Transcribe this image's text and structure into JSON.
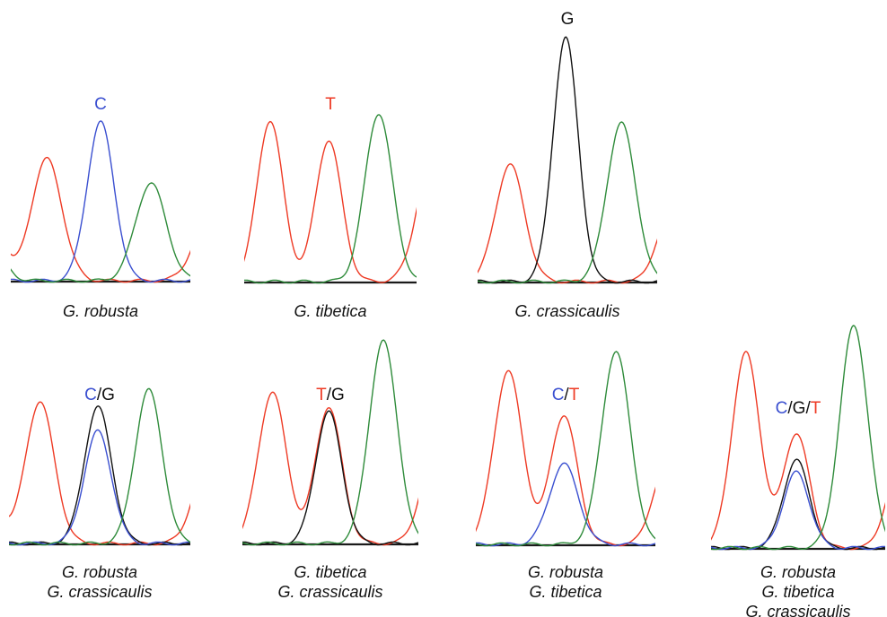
{
  "colors": {
    "A": "#2e8b3a",
    "C": "#3a4fd0",
    "G": "#111111",
    "T": "#ee3a24"
  },
  "panels": [
    {
      "base_call": [
        {
          "letter": "C",
          "base": "C"
        }
      ],
      "species": [
        "G. robusta"
      ],
      "traces": [
        {
          "base": "T",
          "peaks": [
            {
              "x": -0.15,
              "h": 0.45,
              "w": 0.08
            },
            {
              "x": 0.2,
              "h": 0.5,
              "w": 0.085
            },
            {
              "x": 1.12,
              "h": 0.3,
              "w": 0.09
            }
          ]
        },
        {
          "base": "C",
          "peaks": [
            {
              "x": 0.5,
              "h": 0.65,
              "w": 0.075
            }
          ]
        },
        {
          "base": "A",
          "peaks": [
            {
              "x": 0.78,
              "h": 0.4,
              "w": 0.085
            },
            {
              "x": -0.1,
              "h": 0.12,
              "w": 0.07
            }
          ]
        }
      ]
    },
    {
      "base_call": [
        {
          "letter": "T",
          "base": "T"
        }
      ],
      "species": [
        "G. tibetica"
      ],
      "traces": [
        {
          "base": "T",
          "peaks": [
            {
              "x": 0.15,
              "h": 0.66,
              "w": 0.075
            },
            {
              "x": 0.49,
              "h": 0.58,
              "w": 0.075
            },
            {
              "x": 1.1,
              "h": 0.55,
              "w": 0.09
            }
          ]
        },
        {
          "base": "A",
          "peaks": [
            {
              "x": 0.78,
              "h": 0.69,
              "w": 0.08
            }
          ]
        }
      ]
    },
    {
      "base_call": [
        {
          "letter": "G",
          "base": "G"
        }
      ],
      "species": [
        "G. crassicaulis"
      ],
      "traces": [
        {
          "base": "T",
          "peaks": [
            {
              "x": 0.18,
              "h": 0.48,
              "w": 0.08
            },
            {
              "x": 1.06,
              "h": 0.25,
              "w": 0.07
            }
          ]
        },
        {
          "base": "G",
          "peaks": [
            {
              "x": 0.49,
              "h": 1.0,
              "w": 0.07
            }
          ]
        },
        {
          "base": "A",
          "peaks": [
            {
              "x": 0.8,
              "h": 0.65,
              "w": 0.08
            }
          ]
        }
      ]
    },
    {
      "base_call": [
        {
          "letter": "C",
          "base": "C"
        },
        {
          "letter": "/",
          "base": "G"
        },
        {
          "letter": "G",
          "base": "G"
        }
      ],
      "species": [
        "G. robusta",
        "G. crassicaulis"
      ],
      "traces": [
        {
          "base": "T",
          "peaks": [
            {
              "x": 0.17,
              "h": 0.58,
              "w": 0.08
            },
            {
              "x": 1.1,
              "h": 0.35,
              "w": 0.08
            },
            {
              "x": -0.1,
              "h": 0.2,
              "w": 0.06
            }
          ]
        },
        {
          "base": "G",
          "peaks": [
            {
              "x": 0.49,
              "h": 0.56,
              "w": 0.075
            }
          ]
        },
        {
          "base": "C",
          "peaks": [
            {
              "x": 0.49,
              "h": 0.46,
              "w": 0.075
            }
          ]
        },
        {
          "base": "A",
          "peaks": [
            {
              "x": 0.77,
              "h": 0.63,
              "w": 0.075
            }
          ]
        }
      ]
    },
    {
      "base_call": [
        {
          "letter": "T",
          "base": "T"
        },
        {
          "letter": "/",
          "base": "G"
        },
        {
          "letter": "G",
          "base": "G"
        }
      ],
      "species": [
        "G. tibetica",
        "G. crassicaulis"
      ],
      "traces": [
        {
          "base": "T",
          "peaks": [
            {
              "x": 0.17,
              "h": 0.62,
              "w": 0.08
            },
            {
              "x": 0.49,
              "h": 0.56,
              "w": 0.075
            },
            {
              "x": 1.1,
              "h": 0.4,
              "w": 0.08
            }
          ]
        },
        {
          "base": "G",
          "peaks": [
            {
              "x": 0.49,
              "h": 0.54,
              "w": 0.075
            }
          ]
        },
        {
          "base": "A",
          "peaks": [
            {
              "x": 0.8,
              "h": 0.83,
              "w": 0.08
            }
          ]
        }
      ]
    },
    {
      "base_call": [
        {
          "letter": "C",
          "base": "C"
        },
        {
          "letter": "/",
          "base": "G"
        },
        {
          "letter": "T",
          "base": "T"
        }
      ],
      "species": [
        "G. robusta",
        "G. tibetica"
      ],
      "traces": [
        {
          "base": "T",
          "peaks": [
            {
              "x": 0.18,
              "h": 0.71,
              "w": 0.08
            },
            {
              "x": 0.49,
              "h": 0.53,
              "w": 0.075
            },
            {
              "x": 1.05,
              "h": 0.3,
              "w": 0.07
            }
          ]
        },
        {
          "base": "C",
          "peaks": [
            {
              "x": 0.49,
              "h": 0.33,
              "w": 0.08
            }
          ]
        },
        {
          "base": "A",
          "peaks": [
            {
              "x": 0.78,
              "h": 0.79,
              "w": 0.08
            }
          ]
        }
      ]
    },
    {
      "base_call": [
        {
          "letter": "C",
          "base": "C"
        },
        {
          "letter": "/",
          "base": "G"
        },
        {
          "letter": "G",
          "base": "G"
        },
        {
          "letter": "/",
          "base": "G"
        },
        {
          "letter": "T",
          "base": "T"
        }
      ],
      "species": [
        "G. robusta",
        "G. tibetica",
        "G. crassicaulis"
      ],
      "traces": [
        {
          "base": "T",
          "peaks": [
            {
              "x": 0.2,
              "h": 0.8,
              "w": 0.08
            },
            {
              "x": 0.49,
              "h": 0.47,
              "w": 0.075
            },
            {
              "x": 1.07,
              "h": 0.3,
              "w": 0.07
            }
          ]
        },
        {
          "base": "G",
          "peaks": [
            {
              "x": 0.49,
              "h": 0.36,
              "w": 0.075
            }
          ]
        },
        {
          "base": "C",
          "peaks": [
            {
              "x": 0.49,
              "h": 0.31,
              "w": 0.075
            }
          ]
        },
        {
          "base": "A",
          "peaks": [
            {
              "x": 0.82,
              "h": 0.91,
              "w": 0.08
            }
          ]
        }
      ]
    }
  ]
}
